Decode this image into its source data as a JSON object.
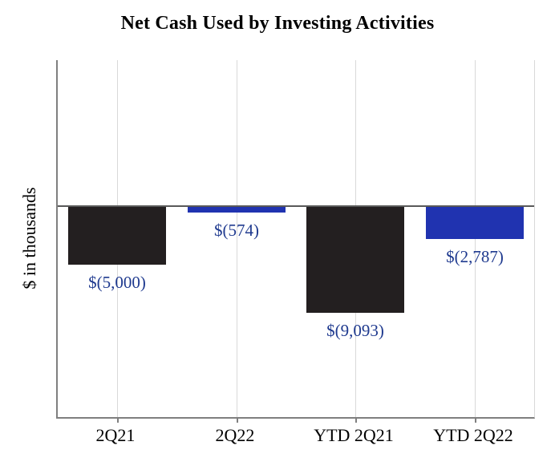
{
  "chart_data": {
    "type": "bar",
    "title": "Net Cash Used by Investing Activities",
    "xlabel": "",
    "ylabel": "$ in thousands",
    "categories": [
      "2Q21",
      "2Q22",
      "YTD 2Q21",
      "YTD 2Q22"
    ],
    "values": [
      -5000,
      -574,
      -9093,
      -2787
    ],
    "data_labels": [
      "$(5,000)",
      "$(574)",
      "$(9,093)",
      "$(2,787)"
    ],
    "bar_colors": [
      "#231f20",
      "#2033b0",
      "#231f20",
      "#2033b0"
    ],
    "label_color": "#1f3a8f",
    "ylim": [
      -18000,
      12500
    ],
    "grid": "vertical",
    "gridline_color": "#d9d9d9",
    "axis_color": "#7f7f7f",
    "zero_line_color": "#595959",
    "legend": "none"
  }
}
